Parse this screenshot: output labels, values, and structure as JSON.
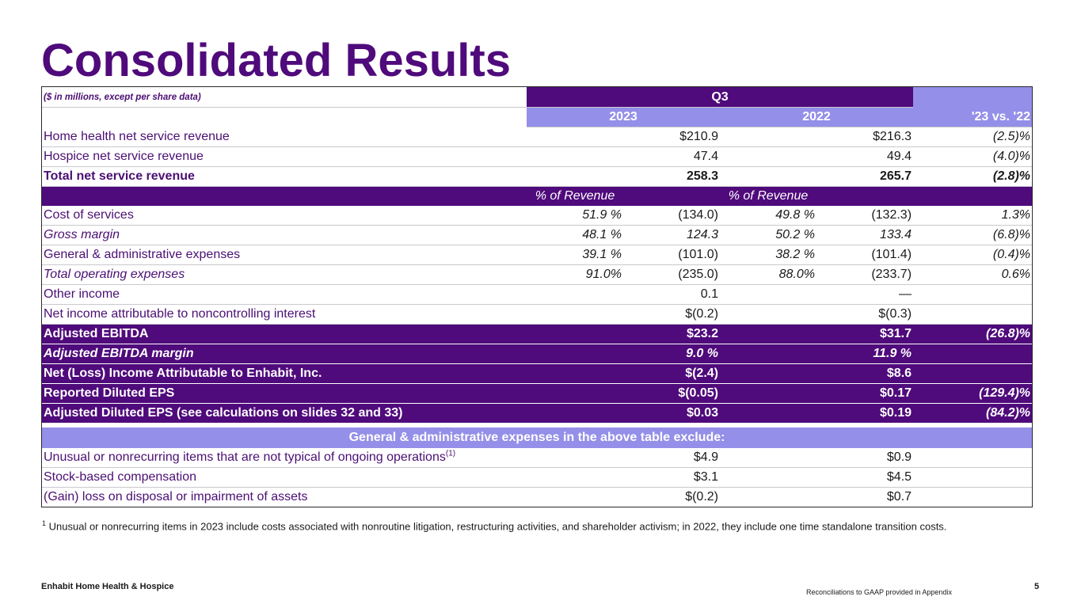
{
  "title": "Consolidated Results",
  "caption": "($ in millions, except per share data)",
  "header": {
    "period": "Q3",
    "year1": "2023",
    "year2": "2022",
    "change": "'23 vs. '22",
    "pct_label": "% of Revenue"
  },
  "rows": {
    "home_health": {
      "label": "Home health net service revenue",
      "v2023": "$210.9",
      "v2022": "$216.3",
      "change": "(2.5)%"
    },
    "hospice": {
      "label": "Hospice net service revenue",
      "v2023": "47.4",
      "v2022": "49.4",
      "change": "(4.0)%"
    },
    "total_revenue": {
      "label": "Total net service revenue",
      "v2023": "258.3",
      "v2022": "265.7",
      "change": "(2.8)%"
    },
    "cost_services": {
      "label": "Cost of services",
      "p2023": "51.9 %",
      "v2023": "(134.0)",
      "p2022": "49.8 %",
      "v2022": "(132.3)",
      "change": "1.3%"
    },
    "gross_margin": {
      "label": "Gross margin",
      "p2023": "48.1 %",
      "v2023": "124.3",
      "p2022": "50.2 %",
      "v2022": "133.4",
      "change": "(6.8)%"
    },
    "gna": {
      "label": "General & administrative expenses",
      "p2023": "39.1 %",
      "v2023": "(101.0)",
      "p2022": "38.2 %",
      "v2022": "(101.4)",
      "change": "(0.4)%"
    },
    "total_opex": {
      "label": "Total operating expenses",
      "p2023": "91.0%",
      "v2023": "(235.0)",
      "p2022": "88.0%",
      "v2022": "(233.7)",
      "change": "0.6%"
    },
    "other_income": {
      "label": "Other income",
      "v2023": "0.1",
      "v2022": "—"
    },
    "nci": {
      "label": "Net income attributable to noncontrolling interest",
      "v2023": "$(0.2)",
      "v2022": "$(0.3)"
    },
    "adj_ebitda": {
      "label": "Adjusted EBITDA",
      "v2023": "$23.2",
      "v2022": "$31.7",
      "change": "(26.8)%"
    },
    "adj_ebitda_margin": {
      "label": "Adjusted EBITDA margin",
      "v2023": "9.0 %",
      "v2022": "11.9 %"
    },
    "net_income": {
      "label": "Net (Loss) Income Attributable to Enhabit, Inc.",
      "v2023": "$(2.4)",
      "v2022": "$8.6"
    },
    "reported_eps": {
      "label": "Reported Diluted EPS",
      "v2023": "$(0.05)",
      "v2022": "$0.17",
      "change": "(129.4)%"
    },
    "adjusted_eps": {
      "label": "Adjusted Diluted EPS (see calculations on slides 32 and 33)",
      "v2023": "$0.03",
      "v2022": "$0.19",
      "change": "(84.2)%"
    }
  },
  "exclusions": {
    "header": "General & administrative expenses in the above table exclude:",
    "unusual": {
      "label": "Unusual or nonrecurring items that are not typical of ongoing operations",
      "note": "(1)",
      "v2023": "$4.9",
      "v2022": "$0.9"
    },
    "stock_comp": {
      "label": "Stock-based compensation",
      "v2023": "$3.1",
      "v2022": "$4.5"
    },
    "gain_loss": {
      "label": "(Gain) loss on disposal or impairment of assets",
      "v2023": "$(0.2)",
      "v2022": "$0.7"
    }
  },
  "footnote": {
    "marker": "1",
    "text": "Unusual or nonrecurring items in 2023 include costs associated with nonroutine litigation, restructuring activities, and shareholder activism; in 2022, they include one time standalone transition costs."
  },
  "footer": {
    "company": "Enhabit Home Health & Hospice",
    "reconciliation": "Reconciliations to GAAP provided in Appendix",
    "page": "5"
  },
  "colors": {
    "primary": "#4f0a7b",
    "lavender": "#948fe8"
  }
}
